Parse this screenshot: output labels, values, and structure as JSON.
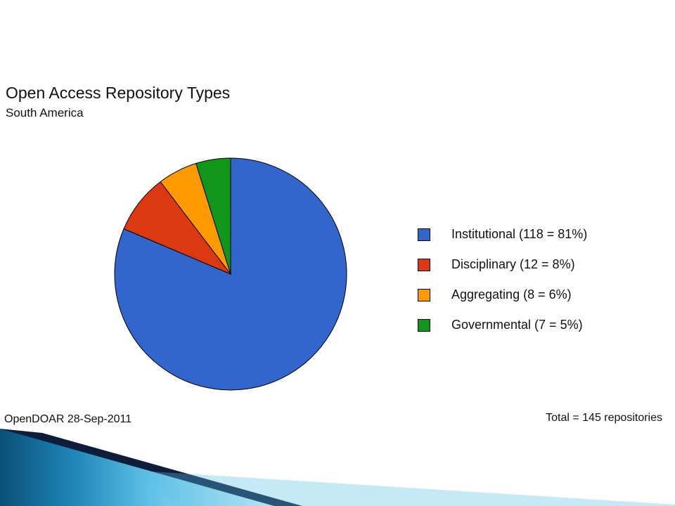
{
  "chart_data": {
    "type": "pie",
    "title": "Open Access Repository Types",
    "subtitle": "South America",
    "categories": [
      "Institutional",
      "Disciplinary",
      "Aggregating",
      "Governmental"
    ],
    "values": [
      118,
      12,
      8,
      7
    ],
    "percentages": [
      81,
      8,
      6,
      5
    ],
    "colors": [
      "#3366cc",
      "#dc3912",
      "#ff9900",
      "#109618"
    ],
    "legend_labels": [
      "Institutional (118 = 81%)",
      "Disciplinary (12 = 8%)",
      "Aggregating (8 = 6%)",
      "Governmental (7 = 5%)"
    ],
    "legend_position": "right",
    "source": "OpenDOAR 28-Sep-2011",
    "total_label": "Total = 145 repositories"
  },
  "theme": {
    "deco_colors": [
      "#0a4f78",
      "#1f86b8",
      "#5cc0e6",
      "#0d1d3a"
    ]
  }
}
